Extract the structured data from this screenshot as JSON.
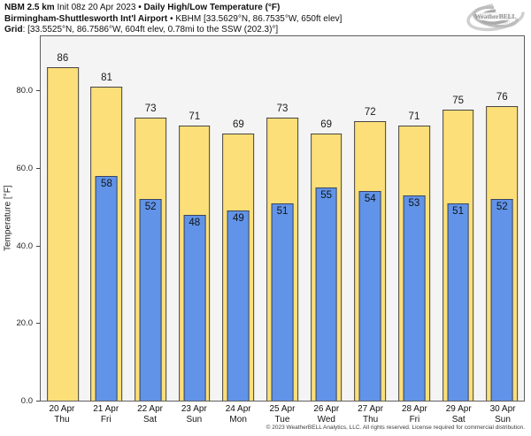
{
  "header": {
    "line1_model": "NBM 2.5 km",
    "line1_init": "Init 08z 20 Apr 2023",
    "line1_sep": "•",
    "line1_product": "Daily High/Low Temperature (°F)",
    "line2_station": "Birmingham-Shuttlesworth Int'l Airport",
    "line2_sep": "•",
    "line2_info": "KBHM [33.5629°N, 86.7535°W, 650ft elev]",
    "line3_label": "Grid",
    "line3_info": ": [33.5525°N, 86.7586°W, 604ft elev, 0.78mi to the SSW (202.3)°]"
  },
  "logo": {
    "brand": "WeatherBELL",
    "sub": "Analytics LLC"
  },
  "chart_data": {
    "type": "bar",
    "title": "Daily High/Low Temperature (°F)",
    "xlabel": "",
    "ylabel": "Temperature [°F]",
    "ylim": [
      0,
      94
    ],
    "grid": false,
    "legend": "none",
    "plot_bg": "#f4f4f4",
    "yticks": [
      {
        "value": 0,
        "label": "0.0"
      },
      {
        "value": 20,
        "label": "20.0"
      },
      {
        "value": 40,
        "label": "40.0"
      },
      {
        "value": 60,
        "label": "60.0"
      },
      {
        "value": 80,
        "label": "80.0"
      }
    ],
    "categories": [
      {
        "date": "20 Apr",
        "day": "Thu"
      },
      {
        "date": "21 Apr",
        "day": "Fri"
      },
      {
        "date": "22 Apr",
        "day": "Sat"
      },
      {
        "date": "23 Apr",
        "day": "Sun"
      },
      {
        "date": "24 Apr",
        "day": "Mon"
      },
      {
        "date": "25 Apr",
        "day": "Tue"
      },
      {
        "date": "26 Apr",
        "day": "Wed"
      },
      {
        "date": "27 Apr",
        "day": "Thu"
      },
      {
        "date": "28 Apr",
        "day": "Fri"
      },
      {
        "date": "29 Apr",
        "day": "Sat"
      },
      {
        "date": "30 Apr",
        "day": "Sun"
      }
    ],
    "series": [
      {
        "name": "High",
        "color": "#fcdf79",
        "values": [
          86,
          81,
          73,
          71,
          69,
          73,
          69,
          72,
          71,
          75,
          76
        ]
      },
      {
        "name": "Low",
        "color": "#6193e8",
        "values": [
          null,
          58,
          52,
          48,
          49,
          51,
          55,
          54,
          53,
          51,
          52
        ]
      }
    ]
  },
  "footer": {
    "copyright": "© 2023 WeatherBELL Analytics, LLC. All rights reserved. License required for commercial distribution."
  }
}
